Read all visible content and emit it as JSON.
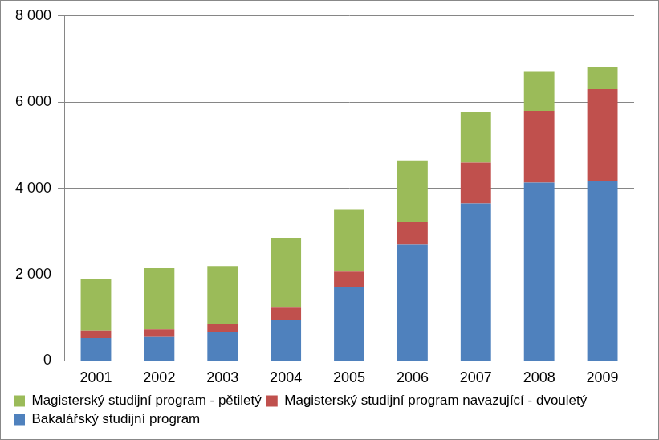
{
  "chart_data": {
    "type": "bar",
    "stacked": true,
    "grid": true,
    "legend": "bottom",
    "categories": [
      "2001",
      "2002",
      "2003",
      "2004",
      "2005",
      "2006",
      "2007",
      "2008",
      "2009"
    ],
    "series": [
      {
        "name": "Bakalářský studijní program",
        "color": "#4f81bd",
        "values": [
          530,
          550,
          660,
          940,
          1700,
          2700,
          3650,
          4130,
          4180
        ]
      },
      {
        "name": "Magisterský studijní program navazující - dvouletý",
        "color": "#c0504d",
        "values": [
          170,
          180,
          190,
          310,
          370,
          530,
          950,
          1670,
          2120
        ]
      },
      {
        "name": "Magisterský studijní program - pětiletý",
        "color": "#9bbb59",
        "values": [
          1200,
          1420,
          1350,
          1590,
          1450,
          1420,
          1180,
          900,
          520
        ]
      }
    ],
    "ylim": [
      0,
      8000
    ],
    "yticks": [
      0,
      {
        "value": 2000,
        "label": "2 000"
      },
      {
        "value": 4000,
        "label": "4 000"
      },
      {
        "value": 6000,
        "label": "6 000"
      },
      {
        "value": 8000,
        "label": "8 000"
      }
    ]
  }
}
